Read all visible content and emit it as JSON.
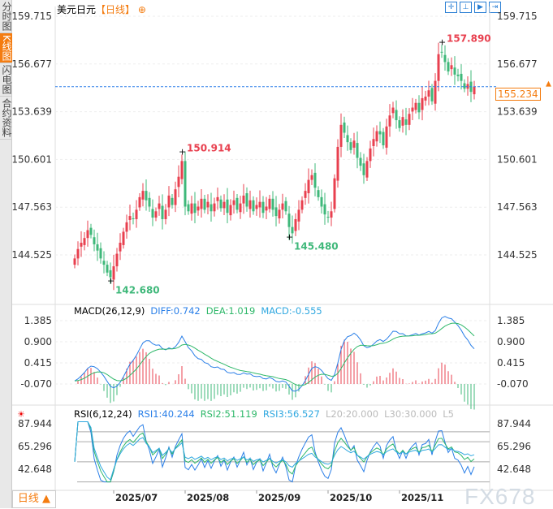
{
  "sidebar": {
    "tabs": [
      {
        "label": "分时图",
        "active": false
      },
      {
        "label": "K线图",
        "active": true
      },
      {
        "label": "闪电图",
        "active": false
      },
      {
        "label": "合约资料",
        "active": false
      }
    ]
  },
  "header": {
    "symbol": "美元日元",
    "period_tag": "【日线】",
    "tools": [
      "crosshair-icon",
      "zoom-range-icon",
      "play-icon",
      "scroll-end-icon"
    ]
  },
  "period_button": "日线 ▲",
  "watermark": "FX678",
  "colors": {
    "up": "#e8404f",
    "down": "#3fb87a",
    "diff": "#2a7fe8",
    "dea": "#2fb86a",
    "rsi1": "#2a7fe8",
    "rsi2": "#2fb86a",
    "rsi3": "#30a8e0",
    "accent": "#f47c10"
  },
  "chart_data": {
    "type": "candlestick",
    "price_axis": {
      "ticks": [
        "159.715",
        "156.677",
        "153.639",
        "150.601",
        "147.563",
        "144.525"
      ],
      "range": [
        144.525,
        159.715
      ]
    },
    "last_price": "155.234",
    "annotations": [
      {
        "label": "157.890",
        "index": 113,
        "kind": "high"
      },
      {
        "label": "150.914",
        "index": 33,
        "kind": "high"
      },
      {
        "label": "145.480",
        "index": 66,
        "kind": "low"
      },
      {
        "label": "142.680",
        "index": 11,
        "kind": "low"
      }
    ],
    "x_labels": [
      {
        "label": "2025/07",
        "index": 12
      },
      {
        "label": "2025/08",
        "index": 34
      },
      {
        "label": "2025/09",
        "index": 56
      },
      {
        "label": "2025/10",
        "index": 78
      },
      {
        "label": "2025/11",
        "index": 100
      }
    ],
    "closes": [
      144.3,
      144.9,
      145.3,
      145.6,
      146.1,
      145.8,
      145.2,
      144.8,
      144.3,
      143.9,
      143.4,
      143.1,
      143.8,
      144.6,
      145.3,
      146.0,
      146.6,
      147.0,
      146.8,
      147.4,
      148.2,
      148.6,
      148.0,
      147.6,
      146.9,
      147.3,
      147.8,
      146.8,
      147.4,
      148.3,
      147.7,
      148.7,
      149.5,
      150.5,
      147.6,
      147.3,
      147.8,
      147.2,
      147.6,
      148.1,
      147.4,
      147.9,
      147.3,
      147.8,
      148.2,
      147.5,
      147.9,
      147.2,
      147.7,
      148.0,
      147.4,
      147.8,
      148.3,
      147.6,
      148.0,
      147.3,
      147.7,
      147.9,
      147.2,
      147.6,
      148.1,
      147.4,
      147.0,
      147.4,
      147.8,
      147.3,
      146.3,
      145.9,
      146.8,
      147.4,
      148.0,
      148.6,
      149.3,
      149.6,
      148.8,
      148.2,
      147.6,
      147.1,
      146.9,
      147.3,
      149.4,
      151.4,
      152.8,
      152.3,
      151.7,
      151.2,
      151.8,
      150.7,
      150.2,
      149.6,
      150.5,
      151.3,
      151.9,
      152.4,
      152.2,
      151.5,
      152.7,
      153.4,
      153.9,
      153.1,
      152.6,
      153.3,
      152.8,
      153.5,
      153.9,
      154.2,
      153.6,
      154.5,
      154.6,
      155.0,
      154.3,
      155.6,
      157.3,
      157.4,
      156.8,
      156.2,
      156.6,
      156.0,
      155.9,
      155.6,
      155.1,
      155.4,
      154.9,
      155.234
    ],
    "macd": {
      "title": "MACD(26,12,9)",
      "diff": "DIFF:0.742",
      "dea": "DEA:1.019",
      "macd": "MACD:-0.555",
      "ticks": [
        "1.385",
        "0.900",
        "0.415",
        "-0.070"
      ],
      "range": [
        -0.07,
        1.385
      ]
    },
    "rsi": {
      "title": "RSI(6,12,24)",
      "rsi1": "RSI1:40.244",
      "rsi2": "RSI2:51.119",
      "rsi3": "RSI3:56.527",
      "l20": "L20:20.000",
      "l30": "L30:30.000",
      "l5": "L5",
      "ticks": [
        "87.944",
        "65.296",
        "42.648"
      ],
      "range": [
        42.648,
        87.944
      ],
      "levels": [
        80,
        70,
        50,
        30
      ]
    }
  }
}
